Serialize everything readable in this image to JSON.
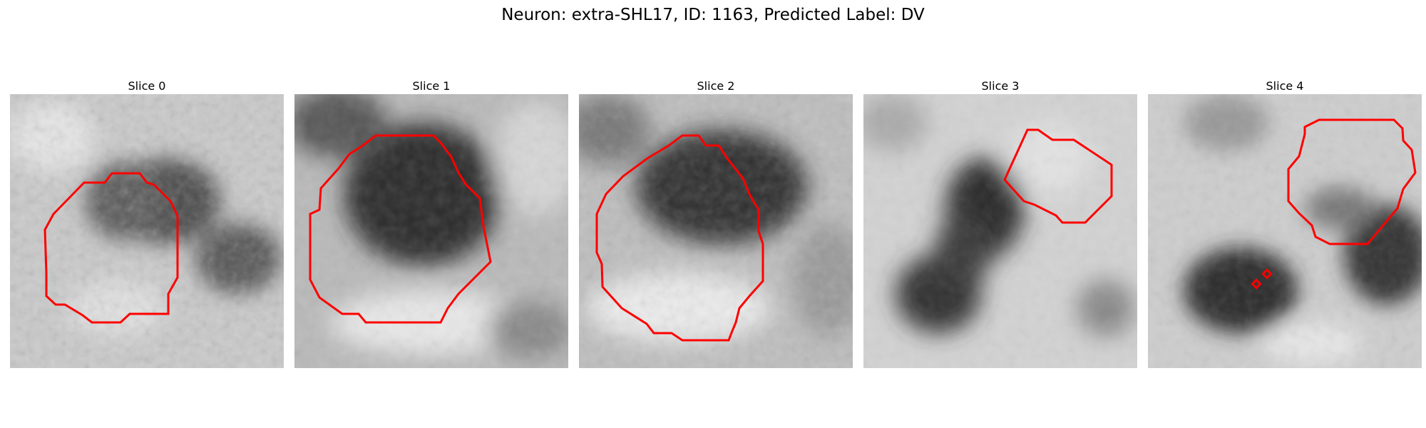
{
  "figure": {
    "title": "Neuron: extra-SHL17, ID: 1163, Predicted Label: DV",
    "outline_color": "#ff0000"
  },
  "panels": [
    {
      "label": "Slice 0"
    },
    {
      "label": "Slice 1"
    },
    {
      "label": "Slice 2"
    },
    {
      "label": "Slice 3"
    },
    {
      "label": "Slice 4"
    }
  ]
}
